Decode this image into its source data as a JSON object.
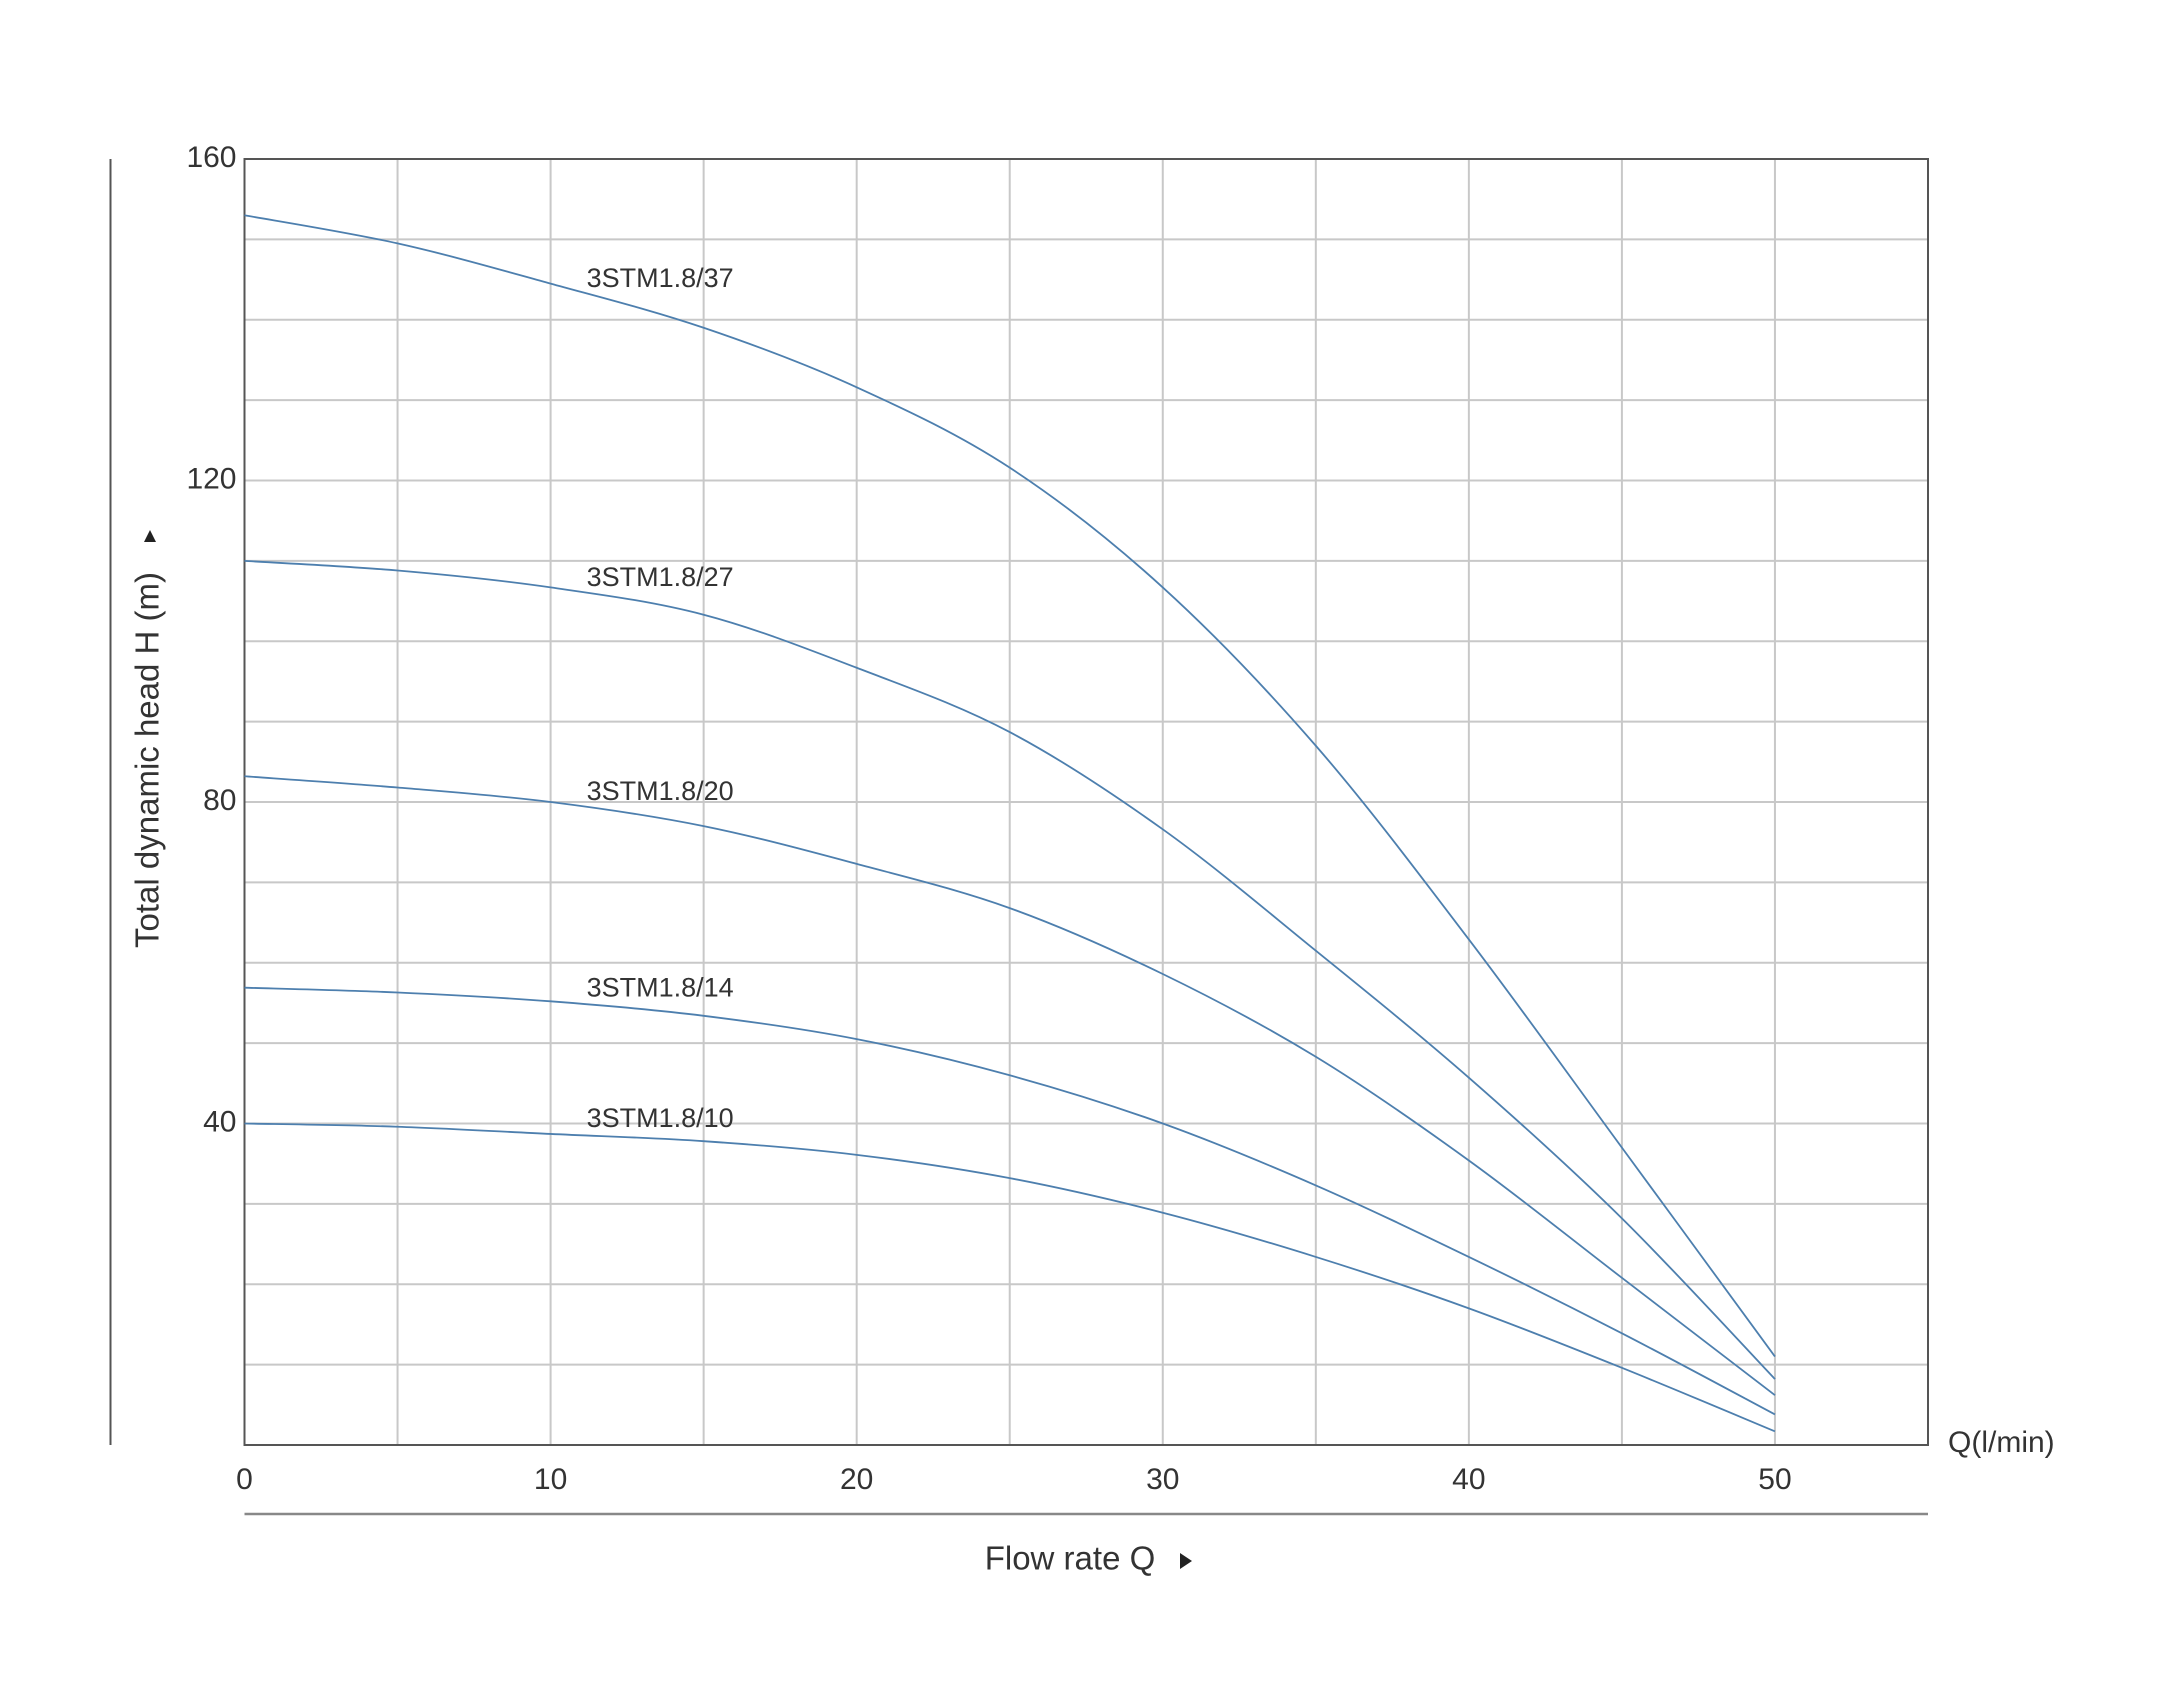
{
  "chart_data": {
    "type": "line",
    "y_label": "Total dynamic head H (m)",
    "x_label": "Flow rate Q",
    "x_unit": "Q(l/min)",
    "x": [
      0,
      5,
      10,
      15,
      20,
      25,
      30,
      35,
      40,
      45,
      50
    ],
    "series": [
      {
        "name": "3STM1.8/37",
        "color": "#4d7fae",
        "values": [
          153,
          149.5,
          144.5,
          139,
          131.6,
          121.6,
          106.7,
          87,
          62.9,
          37,
          11
        ]
      },
      {
        "name": "3STM1.8/27",
        "color": "#4d7fae",
        "values": [
          110,
          108.8,
          106.7,
          103.3,
          96.7,
          88.7,
          76.6,
          61.5,
          45.7,
          28.2,
          8.2
        ]
      },
      {
        "name": "3STM1.8/20",
        "color": "#4d7fae",
        "values": [
          83.2,
          81.8,
          80,
          77,
          72.3,
          66.8,
          58.6,
          48.3,
          35.4,
          20.8,
          6.2
        ]
      },
      {
        "name": "3STM1.8/14",
        "color": "#4d7fae",
        "values": [
          56.9,
          56.3,
          55.2,
          53.4,
          50.5,
          46,
          40,
          32.3,
          23.4,
          13.9,
          3.8
        ]
      },
      {
        "name": "3STM1.8/10",
        "color": "#4d7fae",
        "values": [
          40,
          39.6,
          38.7,
          37.8,
          36.1,
          33.2,
          28.9,
          23.4,
          17,
          9.6,
          1.7
        ]
      }
    ],
    "xlim": [
      0,
      55
    ],
    "ylim": [
      0,
      160
    ],
    "xticks": [
      0,
      10,
      20,
      30,
      40,
      50
    ],
    "yticks": [
      40,
      80,
      120,
      160
    ],
    "xgrid": [
      0,
      5,
      10,
      15,
      20,
      25,
      30,
      35,
      40,
      45,
      50,
      55
    ],
    "ygrid": [
      0,
      10,
      20,
      30,
      40,
      50,
      60,
      70,
      80,
      90,
      100,
      110,
      120,
      130,
      140,
      150,
      160
    ],
    "grid": true
  }
}
